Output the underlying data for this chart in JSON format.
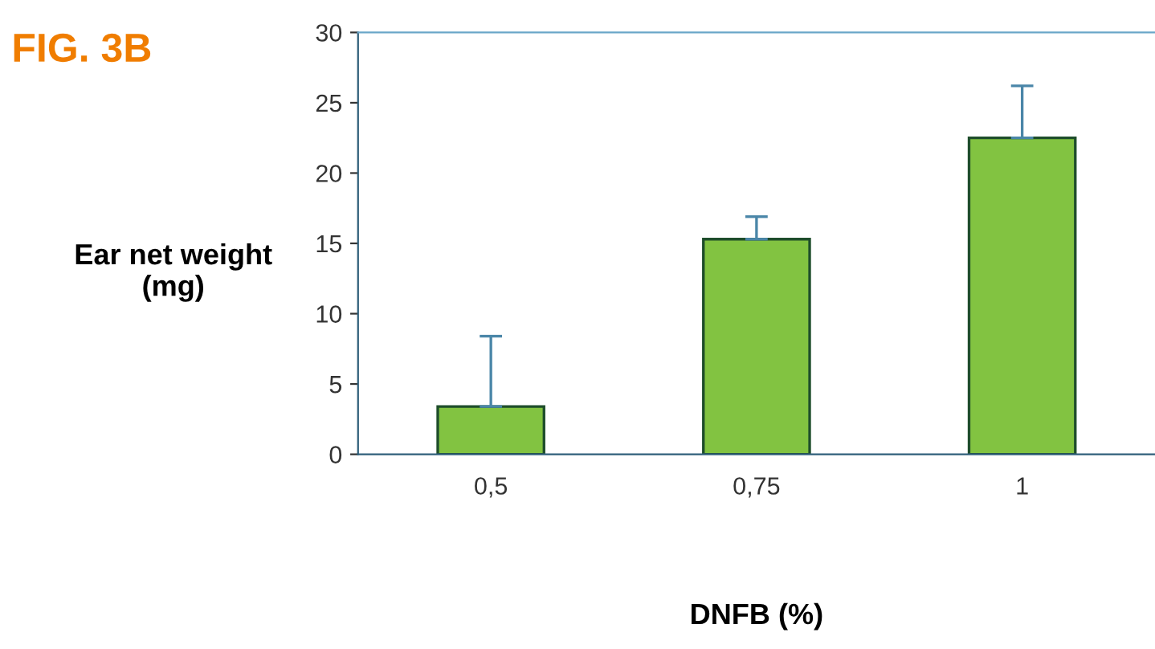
{
  "chart_data": {
    "type": "bar",
    "title": "FIG. 3B",
    "xlabel": "DNFB (%)",
    "ylabel": "Ear net weight\n(mg)",
    "categories": [
      "0,5",
      "0,75",
      "1"
    ],
    "values": [
      3.4,
      15.3,
      22.5
    ],
    "errors": [
      [
        3.4,
        8.4
      ],
      [
        15.3,
        16.9
      ],
      [
        22.5,
        26.2
      ]
    ],
    "color": "#82c341",
    "ylim": [
      0,
      30
    ],
    "yticks": [
      0,
      5,
      10,
      15,
      20,
      25,
      30
    ],
    "grid": false
  }
}
